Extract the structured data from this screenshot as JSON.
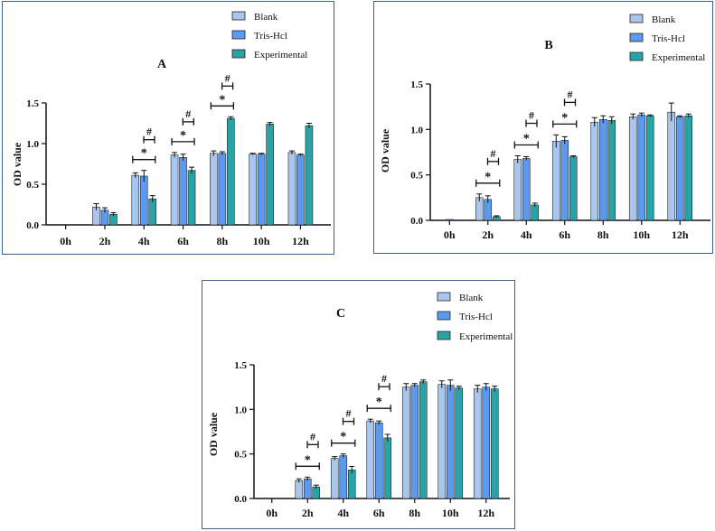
{
  "colors": {
    "blank": "#a9c6ee",
    "trishcl": "#5b9aef",
    "experimental": "#2aa3a7",
    "frame": "#3d5f8f",
    "axis": "#111111"
  },
  "legend_labels": [
    "Blank",
    "Tris-Hcl",
    "Experimental"
  ],
  "chart_data": [
    {
      "id": "A",
      "type": "bar",
      "title": "A",
      "ylabel": "OD value",
      "xlabel": "",
      "categories": [
        "0h",
        "2h",
        "4h",
        "6h",
        "8h",
        "10h",
        "12h"
      ],
      "ylim": [
        0,
        1.5
      ],
      "yticks": [
        "0.0",
        "0.5",
        "1.0",
        "1.5"
      ],
      "series": [
        {
          "name": "Blank",
          "values": [
            0,
            0.22,
            0.61,
            0.86,
            0.88,
            0.87,
            0.89
          ],
          "errors": [
            0,
            0.04,
            0.03,
            0.03,
            0.03,
            0.01,
            0.02
          ]
        },
        {
          "name": "Tris-Hcl",
          "values": [
            0,
            0.18,
            0.6,
            0.83,
            0.88,
            0.87,
            0.86
          ],
          "errors": [
            0,
            0.03,
            0.07,
            0.04,
            0.02,
            0.01,
            0.01
          ]
        },
        {
          "name": "Experimental",
          "values": [
            0,
            0.13,
            0.32,
            0.67,
            1.31,
            1.24,
            1.22
          ],
          "errors": [
            0,
            0.02,
            0.04,
            0.04,
            0.02,
            0.02,
            0.03
          ]
        }
      ],
      "annotations": [
        {
          "category": "4h",
          "sig": [
            "*",
            "#"
          ]
        },
        {
          "category": "6h",
          "sig": [
            "*",
            "#"
          ]
        },
        {
          "category": "8h",
          "sig": [
            "*",
            "#"
          ]
        }
      ]
    },
    {
      "id": "B",
      "type": "bar",
      "title": "B",
      "ylabel": "OD value",
      "xlabel": "",
      "categories": [
        "0h",
        "2h",
        "4h",
        "6h",
        "8h",
        "10h",
        "12h"
      ],
      "ylim": [
        0,
        1.5
      ],
      "yticks": [
        "0.0",
        "0.5",
        "1.0",
        "1.5"
      ],
      "series": [
        {
          "name": "Blank",
          "values": [
            0,
            0.25,
            0.67,
            0.87,
            1.08,
            1.14,
            1.19
          ],
          "errors": [
            0,
            0.04,
            0.04,
            0.07,
            0.05,
            0.03,
            0.1
          ]
        },
        {
          "name": "Tris-Hcl",
          "values": [
            0.01,
            0.23,
            0.68,
            0.88,
            1.11,
            1.16,
            1.14
          ],
          "errors": [
            0,
            0.04,
            0.02,
            0.04,
            0.04,
            0.02,
            0.01
          ]
        },
        {
          "name": "Experimental",
          "values": [
            0,
            0.04,
            0.17,
            0.7,
            1.1,
            1.15,
            1.15
          ],
          "errors": [
            0,
            0.01,
            0.02,
            0.01,
            0.04,
            0.01,
            0.02
          ]
        }
      ],
      "annotations": [
        {
          "category": "2h",
          "sig": [
            "*",
            "#"
          ]
        },
        {
          "category": "4h",
          "sig": [
            "*",
            "#"
          ]
        },
        {
          "category": "6h",
          "sig": [
            "*",
            "#"
          ]
        }
      ]
    },
    {
      "id": "C",
      "type": "bar",
      "title": "C",
      "ylabel": "OD value",
      "xlabel": "",
      "categories": [
        "0h",
        "2h",
        "4h",
        "6h",
        "8h",
        "10h",
        "12h"
      ],
      "ylim": [
        0,
        1.5
      ],
      "yticks": [
        "0.0",
        "0.5",
        "1.0",
        "1.5"
      ],
      "series": [
        {
          "name": "Blank",
          "values": [
            0,
            0.2,
            0.45,
            0.87,
            1.25,
            1.28,
            1.23
          ],
          "errors": [
            0,
            0.02,
            0.02,
            0.02,
            0.04,
            0.04,
            0.04
          ]
        },
        {
          "name": "Tris-Hcl",
          "values": [
            0,
            0.22,
            0.48,
            0.85,
            1.27,
            1.27,
            1.25
          ],
          "errors": [
            0,
            0.02,
            0.02,
            0.02,
            0.02,
            0.06,
            0.04
          ]
        },
        {
          "name": "Experimental",
          "values": [
            0,
            0.13,
            0.32,
            0.68,
            1.31,
            1.24,
            1.23
          ],
          "errors": [
            0,
            0.02,
            0.04,
            0.04,
            0.02,
            0.02,
            0.03
          ]
        }
      ],
      "annotations": [
        {
          "category": "2h",
          "sig": [
            "*",
            "#"
          ]
        },
        {
          "category": "4h",
          "sig": [
            "*",
            "#"
          ]
        },
        {
          "category": "6h",
          "sig": [
            "*",
            "#"
          ]
        }
      ]
    }
  ]
}
